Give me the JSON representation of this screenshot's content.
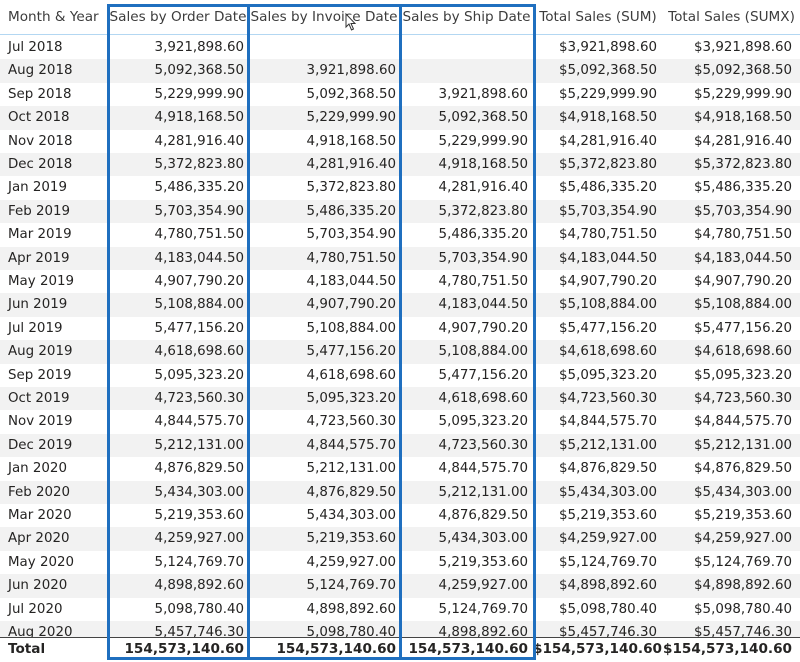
{
  "table": {
    "columns": [
      "Month & Year",
      "Sales by Order Date",
      "Sales by Invoice Date",
      "Sales by Ship Date",
      "Total Sales (SUM)",
      "Total Sales (SUMX)"
    ],
    "rows": [
      [
        "Jul 2018",
        "3,921,898.60",
        "",
        "",
        "$3,921,898.60",
        "$3,921,898.60"
      ],
      [
        "Aug 2018",
        "5,092,368.50",
        "3,921,898.60",
        "",
        "$5,092,368.50",
        "$5,092,368.50"
      ],
      [
        "Sep 2018",
        "5,229,999.90",
        "5,092,368.50",
        "3,921,898.60",
        "$5,229,999.90",
        "$5,229,999.90"
      ],
      [
        "Oct 2018",
        "4,918,168.50",
        "5,229,999.90",
        "5,092,368.50",
        "$4,918,168.50",
        "$4,918,168.50"
      ],
      [
        "Nov 2018",
        "4,281,916.40",
        "4,918,168.50",
        "5,229,999.90",
        "$4,281,916.40",
        "$4,281,916.40"
      ],
      [
        "Dec 2018",
        "5,372,823.80",
        "4,281,916.40",
        "4,918,168.50",
        "$5,372,823.80",
        "$5,372,823.80"
      ],
      [
        "Jan 2019",
        "5,486,335.20",
        "5,372,823.80",
        "4,281,916.40",
        "$5,486,335.20",
        "$5,486,335.20"
      ],
      [
        "Feb 2019",
        "5,703,354.90",
        "5,486,335.20",
        "5,372,823.80",
        "$5,703,354.90",
        "$5,703,354.90"
      ],
      [
        "Mar 2019",
        "4,780,751.50",
        "5,703,354.90",
        "5,486,335.20",
        "$4,780,751.50",
        "$4,780,751.50"
      ],
      [
        "Apr 2019",
        "4,183,044.50",
        "4,780,751.50",
        "5,703,354.90",
        "$4,183,044.50",
        "$4,183,044.50"
      ],
      [
        "May 2019",
        "4,907,790.20",
        "4,183,044.50",
        "4,780,751.50",
        "$4,907,790.20",
        "$4,907,790.20"
      ],
      [
        "Jun 2019",
        "5,108,884.00",
        "4,907,790.20",
        "4,183,044.50",
        "$5,108,884.00",
        "$5,108,884.00"
      ],
      [
        "Jul 2019",
        "5,477,156.20",
        "5,108,884.00",
        "4,907,790.20",
        "$5,477,156.20",
        "$5,477,156.20"
      ],
      [
        "Aug 2019",
        "4,618,698.60",
        "5,477,156.20",
        "5,108,884.00",
        "$4,618,698.60",
        "$4,618,698.60"
      ],
      [
        "Sep 2019",
        "5,095,323.20",
        "4,618,698.60",
        "5,477,156.20",
        "$5,095,323.20",
        "$5,095,323.20"
      ],
      [
        "Oct 2019",
        "4,723,560.30",
        "5,095,323.20",
        "4,618,698.60",
        "$4,723,560.30",
        "$4,723,560.30"
      ],
      [
        "Nov 2019",
        "4,844,575.70",
        "4,723,560.30",
        "5,095,323.20",
        "$4,844,575.70",
        "$4,844,575.70"
      ],
      [
        "Dec 2019",
        "5,212,131.00",
        "4,844,575.70",
        "4,723,560.30",
        "$5,212,131.00",
        "$5,212,131.00"
      ],
      [
        "Jan 2020",
        "4,876,829.50",
        "5,212,131.00",
        "4,844,575.70",
        "$4,876,829.50",
        "$4,876,829.50"
      ],
      [
        "Feb 2020",
        "5,434,303.00",
        "4,876,829.50",
        "5,212,131.00",
        "$5,434,303.00",
        "$5,434,303.00"
      ],
      [
        "Mar 2020",
        "5,219,353.60",
        "5,434,303.00",
        "4,876,829.50",
        "$5,219,353.60",
        "$5,219,353.60"
      ],
      [
        "Apr 2020",
        "4,259,927.00",
        "5,219,353.60",
        "5,434,303.00",
        "$4,259,927.00",
        "$4,259,927.00"
      ],
      [
        "May 2020",
        "5,124,769.70",
        "4,259,927.00",
        "5,219,353.60",
        "$5,124,769.70",
        "$5,124,769.70"
      ],
      [
        "Jun 2020",
        "4,898,892.60",
        "5,124,769.70",
        "4,259,927.00",
        "$4,898,892.60",
        "$4,898,892.60"
      ],
      [
        "Jul 2020",
        "5,098,780.40",
        "4,898,892.60",
        "5,124,769.70",
        "$5,098,780.40",
        "$5,098,780.40"
      ],
      [
        "Aug 2020",
        "5,457,746.30",
        "5,098,780.40",
        "4,898,892.60",
        "$5,457,746.30",
        "$5,457,746.30"
      ]
    ],
    "total": [
      "Total",
      "154,573,140.60",
      "154,573,140.60",
      "154,573,140.60",
      "$154,573,140.60",
      "$154,573,140.60"
    ]
  },
  "colors": {
    "highlight": "#1f6fbf",
    "header_line": "#b3d7f2",
    "alt_row": "#f2f2f2"
  },
  "icons": {
    "cursor": "mouse-pointer-icon"
  }
}
